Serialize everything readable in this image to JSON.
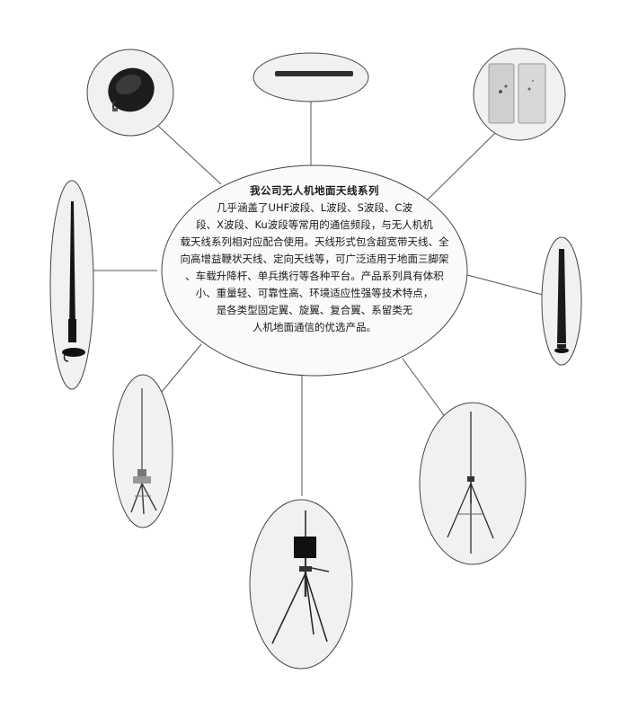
{
  "center": {
    "title": "我公司无人机地面天线系列",
    "lines": [
      "几乎涵盖了UHF波段、L波段、S波段、C波",
      "段、X波段、Ku波段等常用的通信频段，与无人机机",
      "载天线系列相对应配合使用。天线形式包含超宽带天线、全",
      "向高增益鞭状天线、定向天线等，可广泛适用于地面三脚架",
      "、车载升降杆、单兵携行等各种平台。产品系列具有体积",
      "小、重量轻、可靠性高、环境适应性强等技术特点，",
      "是各类型固定翼、旋翼、复合翼、系留类无",
      "人机地面通信的优选产品。"
    ]
  },
  "products": [
    {
      "id": "puck-antenna",
      "icon": "puck-antenna-icon"
    },
    {
      "id": "bar-antenna",
      "icon": "bar-antenna-icon"
    },
    {
      "id": "panel-antenna",
      "icon": "panel-antenna-icon"
    },
    {
      "id": "whip-antenna-left",
      "icon": "whip-antenna-icon"
    },
    {
      "id": "short-whip-antenna-right",
      "icon": "short-whip-antenna-icon"
    },
    {
      "id": "mast-antenna-left",
      "icon": "mast-tripod-antenna-icon"
    },
    {
      "id": "directional-tripod-antenna",
      "icon": "directional-tripod-antenna-icon"
    },
    {
      "id": "whip-tripod-antenna-right",
      "icon": "whip-tripod-antenna-icon"
    }
  ]
}
